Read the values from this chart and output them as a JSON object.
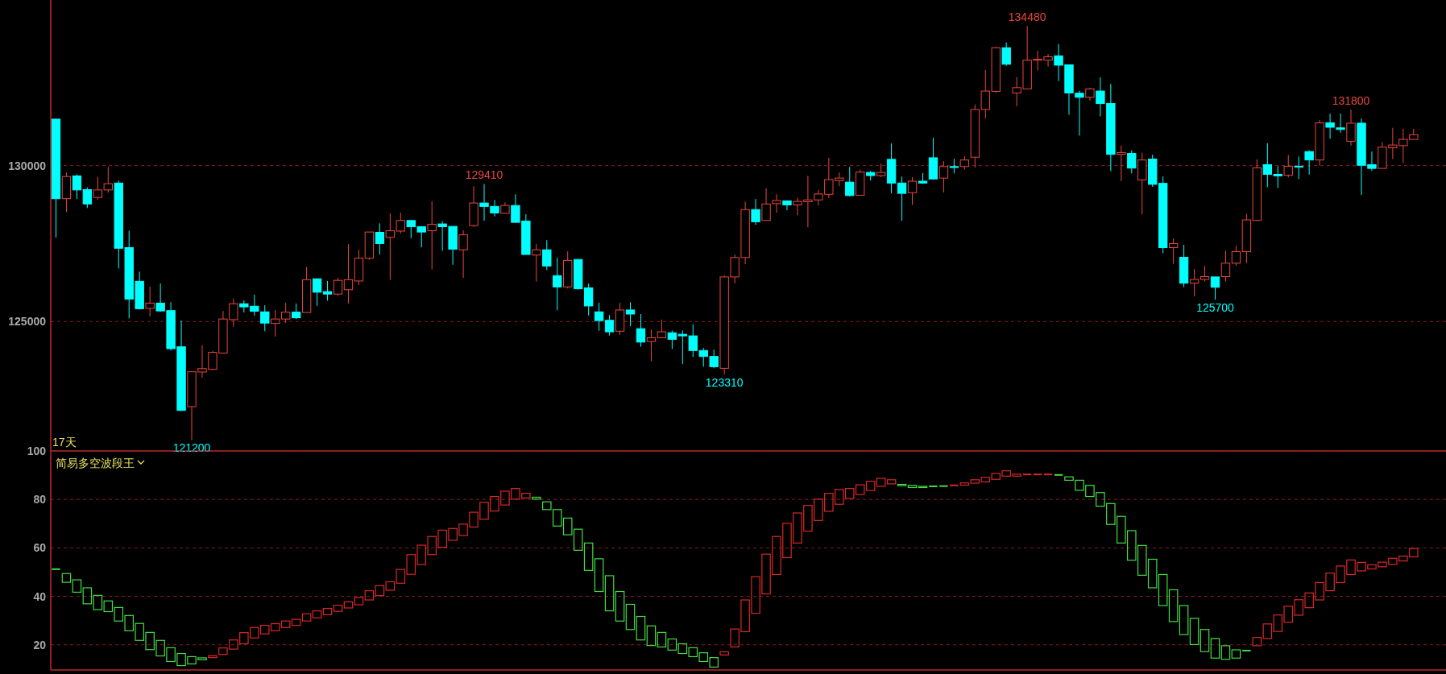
{
  "chart_data": [
    {
      "type": "candlestick",
      "grid": "y",
      "ylim": [
        120850,
        135310
      ],
      "yticks": [
        125000,
        130000
      ],
      "categories": [
        null,
        null,
        null,
        null,
        null,
        null,
        null,
        null,
        null,
        null,
        null,
        null,
        null,
        null,
        null,
        null,
        null,
        null,
        null,
        null,
        null,
        null,
        null,
        null,
        null,
        null,
        null,
        null,
        null,
        null,
        null,
        null,
        null,
        null,
        null,
        null,
        null,
        null,
        null,
        null,
        null,
        null,
        null,
        null,
        null,
        null,
        null,
        null,
        null,
        null,
        null,
        null,
        null,
        null,
        null,
        null,
        null,
        null,
        null,
        null,
        null,
        null,
        null,
        null,
        null,
        null,
        null,
        null,
        null,
        null,
        null,
        null,
        null,
        null,
        null,
        null,
        null,
        null,
        null,
        null,
        null,
        null,
        null,
        null,
        null,
        null,
        null,
        null,
        null,
        null,
        null,
        null,
        null,
        null,
        null,
        null,
        null,
        null,
        null,
        null,
        null,
        null,
        null,
        null,
        null,
        null,
        null,
        null,
        null,
        null,
        null,
        null,
        null,
        null,
        null,
        null,
        null,
        null,
        null,
        null,
        null,
        null,
        null,
        null,
        null,
        null,
        null,
        null,
        null,
        null,
        null
      ],
      "ohlc": [
        [
          131490,
          131490,
          127690,
          128940
        ],
        [
          128940,
          129780,
          128510,
          129650
        ],
        [
          129670,
          129720,
          128930,
          129220
        ],
        [
          129230,
          129300,
          128640,
          128770
        ],
        [
          128980,
          129640,
          128910,
          129220
        ],
        [
          129220,
          129960,
          129130,
          129420
        ],
        [
          129440,
          129520,
          126700,
          127350
        ],
        [
          127370,
          127910,
          125100,
          125720
        ],
        [
          126290,
          126600,
          125390,
          125410
        ],
        [
          125420,
          126120,
          125160,
          125590
        ],
        [
          125590,
          126220,
          125310,
          125340
        ],
        [
          125350,
          125620,
          124070,
          124130
        ],
        [
          124190,
          125030,
          122130,
          122150
        ],
        [
          122270,
          123390,
          121200,
          123390
        ],
        [
          123380,
          124240,
          123200,
          123490
        ],
        [
          123470,
          124050,
          123450,
          124010
        ],
        [
          123990,
          125340,
          123990,
          125080
        ],
        [
          125060,
          125740,
          124830,
          125570
        ],
        [
          125570,
          125680,
          125290,
          125470
        ],
        [
          125490,
          125860,
          125190,
          125330
        ],
        [
          125310,
          125520,
          124690,
          124950
        ],
        [
          124940,
          125370,
          124520,
          125080
        ],
        [
          125080,
          125600,
          124950,
          125300
        ],
        [
          125300,
          125580,
          125080,
          125120
        ],
        [
          125290,
          126750,
          125290,
          126340
        ],
        [
          126370,
          126370,
          125500,
          125940
        ],
        [
          125960,
          126300,
          125670,
          125880
        ],
        [
          125880,
          126400,
          125830,
          126320
        ],
        [
          126020,
          127480,
          125580,
          126340
        ],
        [
          126300,
          127300,
          126170,
          127030
        ],
        [
          127030,
          127870,
          126980,
          127870
        ],
        [
          127860,
          128150,
          127150,
          127500
        ],
        [
          127700,
          128470,
          126340,
          127910
        ],
        [
          127900,
          128490,
          127820,
          128240
        ],
        [
          128240,
          128240,
          127670,
          128040
        ],
        [
          128040,
          128040,
          127380,
          127870
        ],
        [
          127910,
          128860,
          126670,
          128120
        ],
        [
          128130,
          128220,
          127270,
          128040
        ],
        [
          128050,
          128050,
          126820,
          127320
        ],
        [
          127300,
          127920,
          126400,
          127780
        ],
        [
          128080,
          129340,
          128030,
          128800
        ],
        [
          128800,
          129410,
          128230,
          128690
        ],
        [
          128690,
          128900,
          128370,
          128480
        ],
        [
          128470,
          128820,
          128470,
          128720
        ],
        [
          128720,
          129080,
          128180,
          128180
        ],
        [
          128220,
          128440,
          127150,
          127150
        ],
        [
          127130,
          127490,
          126280,
          127300
        ],
        [
          127300,
          127610,
          126650,
          126780
        ],
        [
          126470,
          127050,
          125360,
          126110
        ],
        [
          126110,
          127250,
          126060,
          126960
        ],
        [
          126990,
          126990,
          126030,
          126050
        ],
        [
          126080,
          126220,
          125190,
          125500
        ],
        [
          125310,
          125600,
          124700,
          125030
        ],
        [
          125040,
          125210,
          124550,
          124670
        ],
        [
          124690,
          125600,
          124570,
          125370
        ],
        [
          125370,
          125620,
          124850,
          125240
        ],
        [
          124770,
          125240,
          124190,
          124340
        ],
        [
          124360,
          124750,
          123720,
          124480
        ],
        [
          124480,
          125060,
          124480,
          124670
        ],
        [
          124640,
          124710,
          124120,
          124430
        ],
        [
          124590,
          124710,
          123640,
          124540
        ],
        [
          124540,
          124910,
          123860,
          124070
        ],
        [
          124070,
          124150,
          123550,
          123880
        ],
        [
          123880,
          124100,
          123500,
          123550
        ],
        [
          123500,
          126480,
          123310,
          126430
        ],
        [
          126430,
          127150,
          126220,
          127050
        ],
        [
          127050,
          128840,
          126840,
          128590
        ],
        [
          128590,
          128930,
          128100,
          128200
        ],
        [
          128240,
          129270,
          128240,
          128770
        ],
        [
          128780,
          129080,
          128490,
          128880
        ],
        [
          128870,
          128870,
          128570,
          128740
        ],
        [
          128740,
          128970,
          128410,
          128850
        ],
        [
          128840,
          129670,
          128020,
          128900
        ],
        [
          128900,
          129220,
          128720,
          129090
        ],
        [
          129080,
          130250,
          128960,
          129550
        ],
        [
          129520,
          129780,
          129340,
          129600
        ],
        [
          129470,
          129960,
          129010,
          129040
        ],
        [
          129050,
          129870,
          129050,
          129790
        ],
        [
          129780,
          129830,
          129520,
          129680
        ],
        [
          129680,
          130060,
          129630,
          129780
        ],
        [
          130200,
          130710,
          129110,
          129440
        ],
        [
          129440,
          129650,
          128230,
          129110
        ],
        [
          129130,
          129630,
          128740,
          129500
        ],
        [
          129500,
          129760,
          129420,
          129440
        ],
        [
          130250,
          130890,
          129550,
          129570
        ],
        [
          129600,
          130140,
          129140,
          129970
        ],
        [
          129970,
          130220,
          129750,
          129940
        ],
        [
          129970,
          130300,
          129870,
          130180
        ],
        [
          130270,
          131960,
          129930,
          131800
        ],
        [
          131800,
          133070,
          131510,
          132390
        ],
        [
          132380,
          133800,
          132330,
          133780
        ],
        [
          133780,
          133950,
          133200,
          133250
        ],
        [
          132330,
          132840,
          131900,
          132500
        ],
        [
          132460,
          134480,
          132460,
          133380
        ],
        [
          133380,
          133680,
          133050,
          133410
        ],
        [
          133380,
          133580,
          133170,
          133490
        ],
        [
          133520,
          133900,
          132710,
          133220
        ],
        [
          133230,
          133230,
          131630,
          132330
        ],
        [
          132320,
          132400,
          130960,
          132190
        ],
        [
          132190,
          132500,
          132080,
          132460
        ],
        [
          132390,
          132830,
          131580,
          131990
        ],
        [
          131990,
          132620,
          129820,
          130360
        ],
        [
          130360,
          130640,
          129500,
          130420
        ],
        [
          130390,
          130490,
          129750,
          129920
        ],
        [
          129540,
          130410,
          128440,
          130180
        ],
        [
          130210,
          130350,
          129320,
          129400
        ],
        [
          129430,
          129650,
          127190,
          127370
        ],
        [
          127370,
          127660,
          126850,
          127500
        ],
        [
          127060,
          127460,
          126100,
          126230
        ],
        [
          126230,
          126690,
          125810,
          126350
        ],
        [
          126350,
          126780,
          126280,
          126440
        ],
        [
          126430,
          126430,
          125700,
          126100
        ],
        [
          126440,
          127270,
          126280,
          126870
        ],
        [
          126870,
          127420,
          126790,
          127240
        ],
        [
          127240,
          128450,
          126870,
          128260
        ],
        [
          128240,
          130200,
          128220,
          129930
        ],
        [
          130030,
          130720,
          129310,
          129720
        ],
        [
          129720,
          129980,
          129280,
          129670
        ],
        [
          129690,
          130340,
          129620,
          129980
        ],
        [
          129980,
          130290,
          129570,
          129950
        ],
        [
          130450,
          130490,
          129710,
          130180
        ],
        [
          130180,
          131460,
          130000,
          131370
        ],
        [
          131370,
          131670,
          130860,
          131230
        ],
        [
          131210,
          131670,
          131050,
          131160
        ],
        [
          130780,
          131800,
          130640,
          131360
        ],
        [
          131360,
          131510,
          129060,
          130010
        ],
        [
          130030,
          130450,
          129830,
          129910
        ],
        [
          129910,
          130750,
          129910,
          130590
        ],
        [
          130570,
          131210,
          130210,
          130660
        ],
        [
          130640,
          131180,
          130080,
          130840
        ],
        [
          130840,
          131180,
          130840,
          130990
        ]
      ],
      "colors": [
        "#00ffff",
        "#e8473f",
        "#00ffff",
        "#00ffff",
        "#e8473f",
        "#e8473f",
        "#00ffff",
        "#00ffff",
        "#00ffff",
        "#e8473f",
        "#00ffff",
        "#00ffff",
        "#00ffff",
        "#e8473f",
        "#e8473f",
        "#e8473f",
        "#e8473f",
        "#e8473f",
        "#00ffff",
        "#00ffff",
        "#00ffff",
        "#e8473f",
        "#e8473f",
        "#00ffff",
        "#e8473f",
        "#00ffff",
        "#00ffff",
        "#e8473f",
        "#e8473f",
        "#e8473f",
        "#e8473f",
        "#00ffff",
        "#e8473f",
        "#e8473f",
        "#00ffff",
        "#00ffff",
        "#e8473f",
        "#00ffff",
        "#00ffff",
        "#e8473f",
        "#e8473f",
        "#00ffff",
        "#00ffff",
        "#e8473f",
        "#00ffff",
        "#00ffff",
        "#e8473f",
        "#00ffff",
        "#00ffff",
        "#e8473f",
        "#00ffff",
        "#00ffff",
        "#00ffff",
        "#00ffff",
        "#e8473f",
        "#00ffff",
        "#00ffff",
        "#e8473f",
        "#e8473f",
        "#00ffff",
        "#00ffff",
        "#00ffff",
        "#00ffff",
        "#00ffff",
        "#e8473f",
        "#e8473f",
        "#e8473f",
        "#00ffff",
        "#e8473f",
        "#e8473f",
        "#00ffff",
        "#e8473f",
        "#e8473f",
        "#e8473f",
        "#e8473f",
        "#e8473f",
        "#00ffff",
        "#e8473f",
        "#00ffff",
        "#e8473f",
        "#00ffff",
        "#00ffff",
        "#e8473f",
        "#00ffff",
        "#00ffff",
        "#e8473f",
        "#00ffff",
        "#e8473f",
        "#e8473f",
        "#e8473f",
        "#e8473f",
        "#00ffff",
        "#e8473f",
        "#e8473f",
        "#e8473f",
        "#e8473f",
        "#00ffff",
        "#00ffff",
        "#00ffff",
        "#e8473f",
        "#00ffff",
        "#00ffff",
        "#e8473f",
        "#00ffff",
        "#e8473f",
        "#00ffff",
        "#00ffff",
        "#e8473f",
        "#00ffff",
        "#e8473f",
        "#e8473f",
        "#00ffff",
        "#e8473f",
        "#e8473f",
        "#e8473f",
        "#e8473f",
        "#00ffff",
        "#00ffff",
        "#e8473f",
        "#00ffff",
        "#00ffff",
        "#e8473f",
        "#00ffff",
        "#00ffff",
        "#e8473f",
        "#00ffff",
        "#00ffff",
        "#e8473f",
        "#e8473f",
        "#e8473f",
        "#e8473f"
      ],
      "annotations": [
        "17天",
        {
          "text": "121200",
          "y": 121200
        },
        {
          "text": "129410",
          "y": 129410
        },
        {
          "text": "123310",
          "y": 123310
        },
        {
          "text": "134480",
          "y": 134480
        },
        {
          "text": "125700",
          "y": 125700
        },
        {
          "text": "131800",
          "y": 131800
        }
      ]
    },
    {
      "type": "bar",
      "title": "简易多空波段王",
      "grid": "y",
      "ylim": [
        9.6,
        100
      ],
      "yticks": [
        20,
        40,
        60,
        80,
        100
      ],
      "categories": [
        null,
        null,
        null,
        null,
        null,
        null,
        null,
        null,
        null,
        null,
        null,
        null,
        null,
        null,
        null,
        null,
        null,
        null,
        null,
        null,
        null,
        null,
        null,
        null,
        null,
        null,
        null,
        null,
        null,
        null,
        null,
        null,
        null,
        null,
        null,
        null,
        null,
        null,
        null,
        null,
        null,
        null,
        null,
        null,
        null,
        null,
        null,
        null,
        null,
        null,
        null,
        null,
        null,
        null,
        null,
        null,
        null,
        null,
        null,
        null,
        null,
        null,
        null,
        null,
        null,
        null,
        null,
        null,
        null,
        null,
        null,
        null,
        null,
        null,
        null,
        null,
        null,
        null,
        null,
        null,
        null,
        null,
        null,
        null,
        null,
        null,
        null,
        null,
        null,
        null,
        null,
        null,
        null,
        null,
        null,
        null,
        null,
        null,
        null,
        null,
        null,
        null,
        null,
        null,
        null,
        null,
        null,
        null,
        null,
        null,
        null,
        null,
        null,
        null,
        null,
        null,
        null,
        null,
        null,
        null,
        null,
        null,
        null,
        null,
        null,
        null,
        null,
        null,
        null,
        null,
        null
      ],
      "base": [
        51.2,
        45.8,
        41.7,
        36.9,
        34.5,
        33.7,
        29.8,
        25.8,
        21.8,
        18.0,
        15.4,
        13.1,
        11.4,
        12.1,
        13.8,
        14.7,
        16.0,
        18.2,
        20.4,
        22.8,
        24.5,
        25.8,
        27.1,
        28.0,
        29.8,
        31.1,
        32.4,
        33.8,
        35.2,
        36.5,
        38.5,
        40.3,
        42.5,
        45.4,
        49.1,
        53.1,
        57.2,
        60.2,
        63.1,
        65.1,
        68.6,
        71.8,
        75.2,
        77.7,
        80.1,
        80.6,
        80.1,
        75.8,
        69.0,
        65.4,
        59.0,
        50.7,
        42.0,
        34.0,
        29.8,
        26.3,
        22.0,
        19.7,
        19.1,
        17.8,
        16.4,
        15.1,
        13.1,
        10.8,
        15.8,
        19.1,
        25.4,
        33.0,
        41.0,
        49.0,
        56.0,
        62.0,
        66.9,
        71.3,
        75.1,
        78.0,
        80.4,
        82.0,
        83.7,
        85.4,
        86.4,
        85.7,
        84.9,
        84.9,
        85.1,
        85.2,
        85.4,
        85.9,
        86.7,
        87.2,
        88.3,
        89.6,
        89.6,
        89.9,
        89.9,
        89.9,
        89.9,
        87.9,
        83.8,
        81.2,
        77.2,
        69.7,
        62.0,
        54.9,
        48.7,
        43.5,
        36.2,
        29.6,
        24.2,
        20.1,
        17.2,
        14.5,
        14.0,
        14.5,
        17.2,
        19.6,
        22.6,
        25.5,
        29.3,
        32.2,
        35.3,
        38.5,
        42.3,
        45.7,
        49.0,
        50.5,
        51.3,
        52.2,
        53.2,
        54.6,
        56.3
      ],
      "values": [
        0,
        3.6,
        5.1,
        6.6,
        5.9,
        4.4,
        5.6,
        6.3,
        7.0,
        7.1,
        6.4,
        5.7,
        5.0,
        3.0,
        0.8,
        0.8,
        2.7,
        3.8,
        4.6,
        4.3,
        3.5,
        2.9,
        2.7,
        2.5,
        3.0,
        2.9,
        2.6,
        2.5,
        2.5,
        3.0,
        3.8,
        4.1,
        3.5,
        5.7,
        8.1,
        8.0,
        7.5,
        7.1,
        4.9,
        4.7,
        6.1,
        7.0,
        6.0,
        5.7,
        4.4,
        1.9,
        0.8,
        3.2,
        6.8,
        6.9,
        8.7,
        11.3,
        13.5,
        14.5,
        12.2,
        10.4,
        9.7,
        8.1,
        6.0,
        4.6,
        4.0,
        3.7,
        3.6,
        3.9,
        1.3,
        7.4,
        13.1,
        15.1,
        16.4,
        15.7,
        14.1,
        12.4,
        10.6,
        8.8,
        7.4,
        6.1,
        4.1,
        4.0,
        3.8,
        3.3,
        1.7,
        0.5,
        0.9,
        0.5,
        0.3,
        0.3,
        0.4,
        0.9,
        1.4,
        1.9,
        2.4,
        2.2,
        0.8,
        0.4,
        0.4,
        0.4,
        0.2,
        1.4,
        4.1,
        4.6,
        5.6,
        8.6,
        11.0,
        12.2,
        12.3,
        11.8,
        12.8,
        13.1,
        12.0,
        10.8,
        9.1,
        8.1,
        5.6,
        3.4,
        0.4,
        3.4,
        6.0,
        6.8,
        6.6,
        6.4,
        6.1,
        7.2,
        7.3,
        6.8,
        6.0,
        3.5,
        1.7,
        1.9,
        2.5,
        2.0,
        3.4
      ],
      "colors": [
        "#44dd44",
        "#44dd44",
        "#44dd44",
        "#44dd44",
        "#44dd44",
        "#44dd44",
        "#44dd44",
        "#44dd44",
        "#44dd44",
        "#44dd44",
        "#44dd44",
        "#44dd44",
        "#44dd44",
        "#44dd44",
        "#44dd44",
        "#d82828",
        "#d82828",
        "#d82828",
        "#d82828",
        "#d82828",
        "#d82828",
        "#d82828",
        "#d82828",
        "#d82828",
        "#d82828",
        "#d82828",
        "#d82828",
        "#d82828",
        "#d82828",
        "#d82828",
        "#d82828",
        "#d82828",
        "#d82828",
        "#d82828",
        "#d82828",
        "#d82828",
        "#d82828",
        "#d82828",
        "#d82828",
        "#d82828",
        "#d82828",
        "#d82828",
        "#d82828",
        "#d82828",
        "#d82828",
        "#d82828",
        "#44dd44",
        "#44dd44",
        "#44dd44",
        "#44dd44",
        "#44dd44",
        "#44dd44",
        "#44dd44",
        "#44dd44",
        "#44dd44",
        "#44dd44",
        "#44dd44",
        "#44dd44",
        "#44dd44",
        "#44dd44",
        "#44dd44",
        "#44dd44",
        "#44dd44",
        "#44dd44",
        "#d82828",
        "#d82828",
        "#d82828",
        "#d82828",
        "#d82828",
        "#d82828",
        "#d82828",
        "#d82828",
        "#d82828",
        "#d82828",
        "#d82828",
        "#d82828",
        "#d82828",
        "#d82828",
        "#d82828",
        "#d82828",
        "#d82828",
        "#44dd44",
        "#44dd44",
        "#44dd44",
        "#44dd44",
        "#44dd44",
        "#d82828",
        "#d82828",
        "#d82828",
        "#d82828",
        "#d82828",
        "#d82828",
        "#d82828",
        "#d82828",
        "#d82828",
        "#d82828",
        "#44dd44",
        "#44dd44",
        "#44dd44",
        "#44dd44",
        "#44dd44",
        "#44dd44",
        "#44dd44",
        "#44dd44",
        "#44dd44",
        "#44dd44",
        "#44dd44",
        "#44dd44",
        "#44dd44",
        "#44dd44",
        "#44dd44",
        "#44dd44",
        "#44dd44",
        "#44dd44",
        "#44dd44",
        "#d82828",
        "#d82828",
        "#d82828",
        "#d82828",
        "#d82828",
        "#d82828",
        "#d82828",
        "#d82828",
        "#d82828",
        "#d82828",
        "#d82828",
        "#d82828",
        "#d82828",
        "#d82828",
        "#d82828",
        "#d82828"
      ]
    }
  ]
}
